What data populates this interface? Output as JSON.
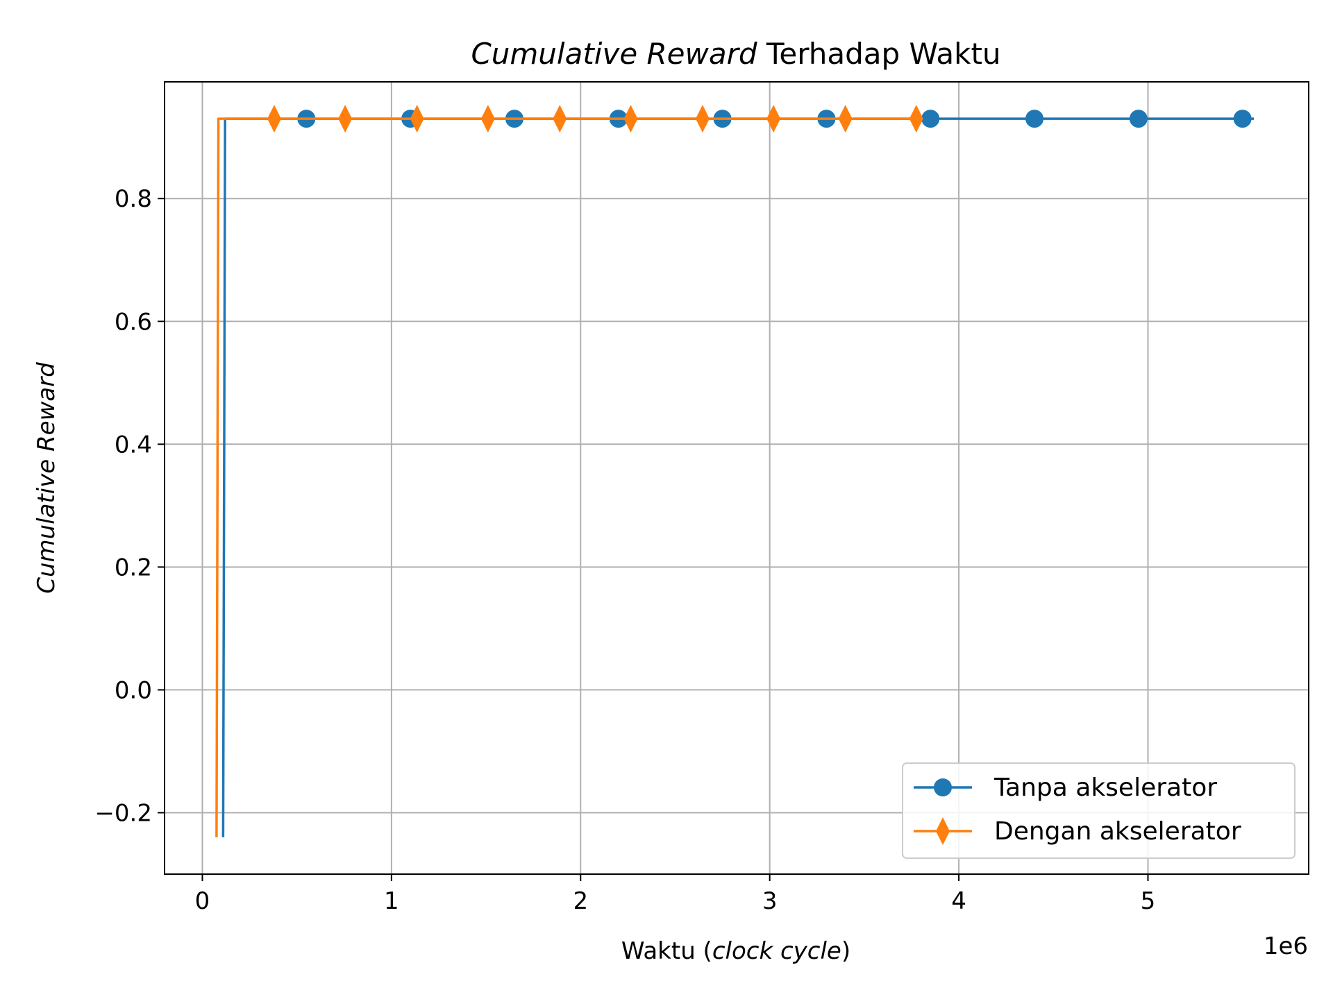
{
  "chart_data": {
    "type": "line",
    "title_italic": "Cumulative Reward",
    "title_rest": " Terhadap Waktu",
    "xlabel_prefix": "Waktu (",
    "xlabel_italic": "clock cycle",
    "xlabel_suffix": ")",
    "ylabel": "Cumulative Reward",
    "x_scale_label": "1e6",
    "xlim": [
      -200000,
      5850000
    ],
    "ylim": [
      -0.3,
      0.99
    ],
    "x_ticks": [
      0,
      1000000,
      2000000,
      3000000,
      4000000,
      5000000
    ],
    "x_tick_labels": [
      "0",
      "1",
      "2",
      "3",
      "4",
      "5"
    ],
    "y_ticks": [
      -0.2,
      0.0,
      0.2,
      0.4,
      0.6,
      0.8
    ],
    "y_tick_labels": [
      "−0.2",
      "0.0",
      "0.2",
      "0.4",
      "0.6",
      "0.8"
    ],
    "grid": true,
    "legend_position": "lower right",
    "series": [
      {
        "name": "Tanpa akselerator",
        "color": "#1f77b4",
        "marker": "circle",
        "line": [
          [
            110000,
            -0.24
          ],
          [
            120000,
            0.93
          ],
          [
            5560000,
            0.93
          ]
        ],
        "markers": [
          [
            550000,
            0.93
          ],
          [
            1100000,
            0.93
          ],
          [
            1650000,
            0.93
          ],
          [
            2200000,
            0.93
          ],
          [
            2750000,
            0.93
          ],
          [
            3300000,
            0.93
          ],
          [
            3850000,
            0.93
          ],
          [
            4400000,
            0.93
          ],
          [
            4950000,
            0.93
          ],
          [
            5500000,
            0.93
          ]
        ]
      },
      {
        "name": "Dengan akselerator",
        "color": "#ff7f0e",
        "marker": "thin_diamond",
        "line": [
          [
            75000,
            -0.24
          ],
          [
            85000,
            0.93
          ],
          [
            3790000,
            0.93
          ]
        ],
        "markers": [
          [
            380000,
            0.93
          ],
          [
            755000,
            0.93
          ],
          [
            1135000,
            0.93
          ],
          [
            1510000,
            0.93
          ],
          [
            1890000,
            0.93
          ],
          [
            2265000,
            0.93
          ],
          [
            2645000,
            0.93
          ],
          [
            3020000,
            0.93
          ],
          [
            3400000,
            0.93
          ],
          [
            3775000,
            0.93
          ]
        ]
      }
    ]
  }
}
